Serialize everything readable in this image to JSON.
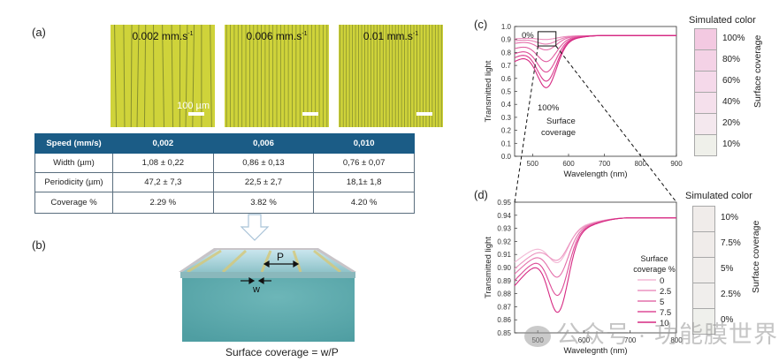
{
  "panels": {
    "a": "(a)",
    "b": "(b)",
    "c": "(c)",
    "d": "(d)"
  },
  "micrographs": [
    {
      "speed": "0.002 mm.s",
      "sup": "-1",
      "scale_label": "100 µm",
      "line_count": 13
    },
    {
      "speed": "0.006 mm.s",
      "sup": "-1",
      "scale_label": "",
      "line_count": 27
    },
    {
      "speed": "0.01 mm.s",
      "sup": "-1",
      "scale_label": "",
      "line_count": 34
    }
  ],
  "table": {
    "headers": [
      "Speed (mm/s)",
      "0,002",
      "0,006",
      "0,010"
    ],
    "rows": [
      [
        "Width (µm)",
        "1,08 ± 0,22",
        "0,86 ± 0,13",
        "0,76 ± 0,07"
      ],
      [
        "Periodicity (µm)",
        "47,2 ± 7,3",
        "22,5 ± 2,7",
        "18,1± 1,8"
      ],
      [
        "Coverage %",
        "2.29 %",
        "3.82 %",
        "4.20 %"
      ]
    ]
  },
  "schematic": {
    "period_label": "P",
    "width_label": "w",
    "formula": "Surface coverage = w/P"
  },
  "colors": {
    "header_blue": "#1b5c86",
    "micro_yellow": "#cfd33a",
    "substrate_teal": "#5aa8ab",
    "curve_pink": "#e0509a"
  },
  "chart_data": [
    {
      "type": "line",
      "id": "c",
      "xlabel": "Wavelength (nm)",
      "ylabel": "Transmitted light",
      "xlim": [
        450,
        900
      ],
      "ylim": [
        0.0,
        1.0
      ],
      "xticks": [
        500,
        600,
        700,
        800,
        900
      ],
      "yticks": [
        0.0,
        0.1,
        0.2,
        0.3,
        0.4,
        0.5,
        0.6,
        0.7,
        0.8,
        0.9,
        1.0
      ],
      "annotations": [
        "0%",
        "100%",
        "Surface",
        "coverage"
      ],
      "series": [
        {
          "name": "0%",
          "start": 0.905,
          "dip_min": 0.9,
          "plateau": 0.93
        },
        {
          "name": "10%",
          "start": 0.89,
          "dip_min": 0.865,
          "plateau": 0.93
        },
        {
          "name": "20%",
          "start": 0.87,
          "dip_min": 0.82,
          "plateau": 0.93
        },
        {
          "name": "40%",
          "start": 0.83,
          "dip_min": 0.73,
          "plateau": 0.93
        },
        {
          "name": "60%",
          "start": 0.79,
          "dip_min": 0.65,
          "plateau": 0.93
        },
        {
          "name": "80%",
          "start": 0.76,
          "dip_min": 0.58,
          "plateau": 0.93
        },
        {
          "name": "100%",
          "start": 0.73,
          "dip_min": 0.53,
          "plateau": 0.93
        }
      ],
      "zoom_box": {
        "x": [
          515,
          565
        ],
        "y": [
          0.85,
          0.96
        ]
      }
    },
    {
      "type": "line",
      "id": "d",
      "xlabel": "Wavelegnth (nm)",
      "ylabel": "Transmitted light",
      "xlim": [
        450,
        800
      ],
      "ylim": [
        0.85,
        0.95
      ],
      "xticks": [
        500,
        600,
        700,
        800
      ],
      "yticks": [
        0.85,
        0.86,
        0.87,
        0.88,
        0.89,
        0.9,
        0.91,
        0.92,
        0.93,
        0.94,
        0.95
      ],
      "legend_title": [
        "Surface",
        "coverage %"
      ],
      "legend_position": "bottom-right",
      "series": [
        {
          "name": "0",
          "start": 0.904,
          "dip_min": 0.904,
          "plateau": 0.938
        },
        {
          "name": "2.5",
          "start": 0.899,
          "dip_min": 0.906,
          "plateau": 0.938
        },
        {
          "name": "5",
          "start": 0.895,
          "dip_min": 0.893,
          "plateau": 0.938
        },
        {
          "name": "7.5",
          "start": 0.89,
          "dip_min": 0.879,
          "plateau": 0.938
        },
        {
          "name": "10",
          "start": 0.886,
          "dip_min": 0.866,
          "plateau": 0.938
        }
      ]
    }
  ],
  "swatches_c": {
    "title": "Simulated color",
    "axis_label": "Surface coverage",
    "items": [
      {
        "label": "100%",
        "color": "#f3c9e1"
      },
      {
        "label": "80%",
        "color": "#f4d2e6"
      },
      {
        "label": "60%",
        "color": "#f5d9ea"
      },
      {
        "label": "40%",
        "color": "#f5e0ec"
      },
      {
        "label": "20%",
        "color": "#f4e8ee"
      },
      {
        "label": "10%",
        "color": "#eff0ea"
      }
    ]
  },
  "swatches_d": {
    "title": "Simulated color",
    "axis_label": "Surface coverage",
    "items": [
      {
        "label": "10%",
        "color": "#f0ecea"
      },
      {
        "label": "7.5%",
        "color": "#f0ecea"
      },
      {
        "label": "5%",
        "color": "#f0edeb"
      },
      {
        "label": "2.5%",
        "color": "#f0eeec"
      },
      {
        "label": "0%",
        "color": "#eff0ec"
      }
    ]
  },
  "watermark": "公众号 · 功能膜世界"
}
